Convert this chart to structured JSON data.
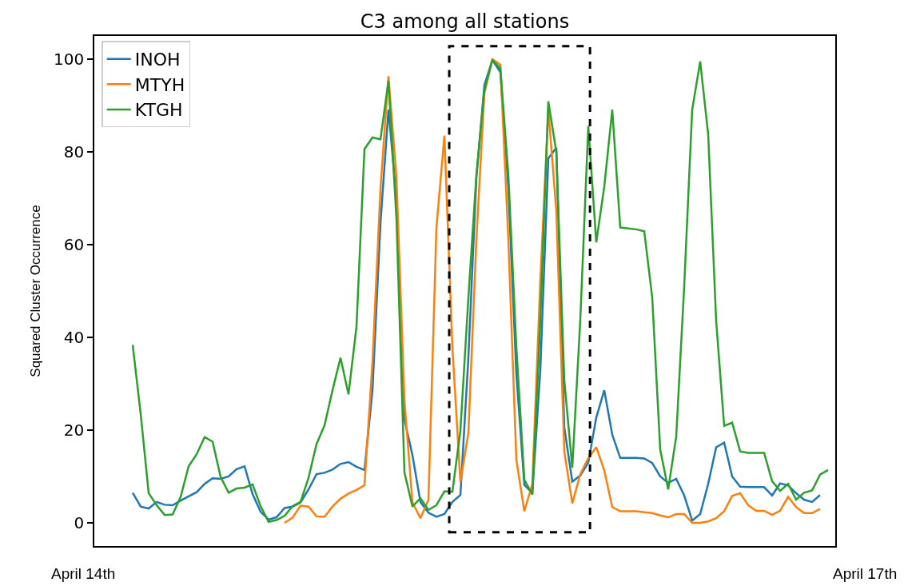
{
  "chart_data": {
    "type": "line",
    "title": "C3 among all stations",
    "ylabel": "Squared Cluster Occurrence",
    "annotations": [
      "April 14th",
      "April 17th"
    ],
    "categories": [
      null,
      null,
      null,
      null,
      null,
      null,
      null,
      null,
      null,
      null,
      null,
      null,
      null,
      null,
      null,
      null,
      null,
      null,
      null,
      null,
      null,
      null,
      null,
      null,
      null,
      null,
      null,
      null,
      null,
      null,
      null,
      null,
      null,
      null,
      null,
      null,
      null,
      null,
      null,
      null,
      null,
      null,
      null,
      null,
      null,
      null,
      null,
      null,
      null,
      null,
      null,
      null,
      null,
      null,
      null,
      null,
      null,
      null,
      null,
      null,
      null,
      null,
      null,
      null,
      null,
      null,
      null,
      null,
      null,
      null,
      null,
      null,
      null,
      null,
      null,
      null,
      null,
      null,
      null,
      null,
      null,
      null,
      null,
      null,
      null,
      null,
      null,
      null,
      null
    ],
    "ylim": [
      -5,
      105
    ],
    "yticks": [
      0,
      20,
      40,
      60,
      80,
      100
    ],
    "legend": "top left",
    "series": [
      {
        "name": "INOH",
        "color": "#1f77b4",
        "values": [
          null,
          6.5,
          3.5,
          3.1,
          4.5,
          3.9,
          3.8,
          4.8,
          5.7,
          6.6,
          8.4,
          9.6,
          9.5,
          10.0,
          11.6,
          12.2,
          6.2,
          2.4,
          0.7,
          1.2,
          3.2,
          3.5,
          4.4,
          7.2,
          10.5,
          10.8,
          11.5,
          12.7,
          13.1,
          12.1,
          11.4,
          28.6,
          64.6,
          89.1,
          70,
          22.3,
          14.6,
          4.5,
          2.2,
          1.3,
          1.9,
          4.5,
          6.0,
          35.6,
          74.4,
          94.4,
          99.8,
          97.2,
          72.2,
          32.2,
          8.2,
          6.4,
          33,
          78.6,
          80.9,
          20.6,
          8.9,
          10.2,
          13.0,
          22.7,
          28.6,
          19.0,
          14,
          14,
          14,
          13.9,
          12.9,
          10.0,
          8.6,
          9.5,
          5.9,
          0.5,
          1.9,
          8.4,
          16.3,
          17.3,
          10.0,
          7.8,
          7.7,
          7.7,
          7.7,
          5.9,
          8.5,
          8.1,
          6.4,
          5.0,
          4.5,
          6.0,
          null
        ]
      },
      {
        "name": "MTYH",
        "color": "#ff7f0e",
        "values": [
          null,
          null,
          null,
          null,
          null,
          null,
          null,
          null,
          null,
          null,
          null,
          null,
          null,
          null,
          null,
          null,
          null,
          null,
          null,
          null,
          0,
          1.1,
          3.7,
          3.5,
          1.4,
          1.3,
          3.5,
          5.2,
          6.3,
          7.1,
          8.1,
          34.7,
          72,
          96.3,
          74.5,
          26.4,
          4.4,
          1.0,
          4.9,
          63.6,
          83.5,
          37.9,
          8.8,
          19.4,
          61.1,
          92.6,
          100,
          98.8,
          61.1,
          13.6,
          2.5,
          8.4,
          52.3,
          89.1,
          67.3,
          15.4,
          4.2,
          10.5,
          14.0,
          16.3,
          11.3,
          3.4,
          2.5,
          2.5,
          2.5,
          2.3,
          2.1,
          1.6,
          1.2,
          1.9,
          1.9,
          0,
          0,
          0.3,
          1.0,
          2.5,
          5.8,
          6.4,
          3.8,
          2.6,
          2.6,
          1.7,
          2.6,
          5.6,
          3.4,
          2.1,
          2.1,
          3.0,
          null
        ]
      },
      {
        "name": "KTGH",
        "color": "#2ca02c",
        "values": [
          null,
          38.4,
          23.5,
          6.4,
          3.8,
          1.7,
          1.8,
          5.6,
          12.2,
          14.8,
          18.5,
          17.5,
          9.9,
          6.5,
          7.4,
          7.6,
          8.3,
          3.6,
          0.2,
          0.6,
          1.5,
          3.6,
          4.5,
          9.7,
          17.0,
          21.0,
          28.6,
          35.6,
          27.7,
          42.3,
          80.6,
          83.1,
          82.7,
          95.3,
          65.7,
          10.9,
          3.5,
          5.3,
          2.8,
          3.8,
          6.8,
          6.7,
          19.9,
          48.5,
          75,
          93.3,
          99.8,
          98,
          75,
          37.9,
          9.3,
          6.1,
          43.5,
          90.9,
          80,
          30.7,
          11.9,
          43.8,
          85.6,
          60.5,
          72.5,
          89.1,
          63.7,
          63.5,
          63.3,
          62.9,
          48.6,
          15.8,
          7.2,
          18.6,
          51,
          89.1,
          99.5,
          83.8,
          43.5,
          20.9,
          21.6,
          15.4,
          15.1,
          15.1,
          15.1,
          9,
          6.9,
          8.4,
          5.0,
          6.5,
          7.0,
          10.4,
          11.4
        ]
      }
    ]
  }
}
